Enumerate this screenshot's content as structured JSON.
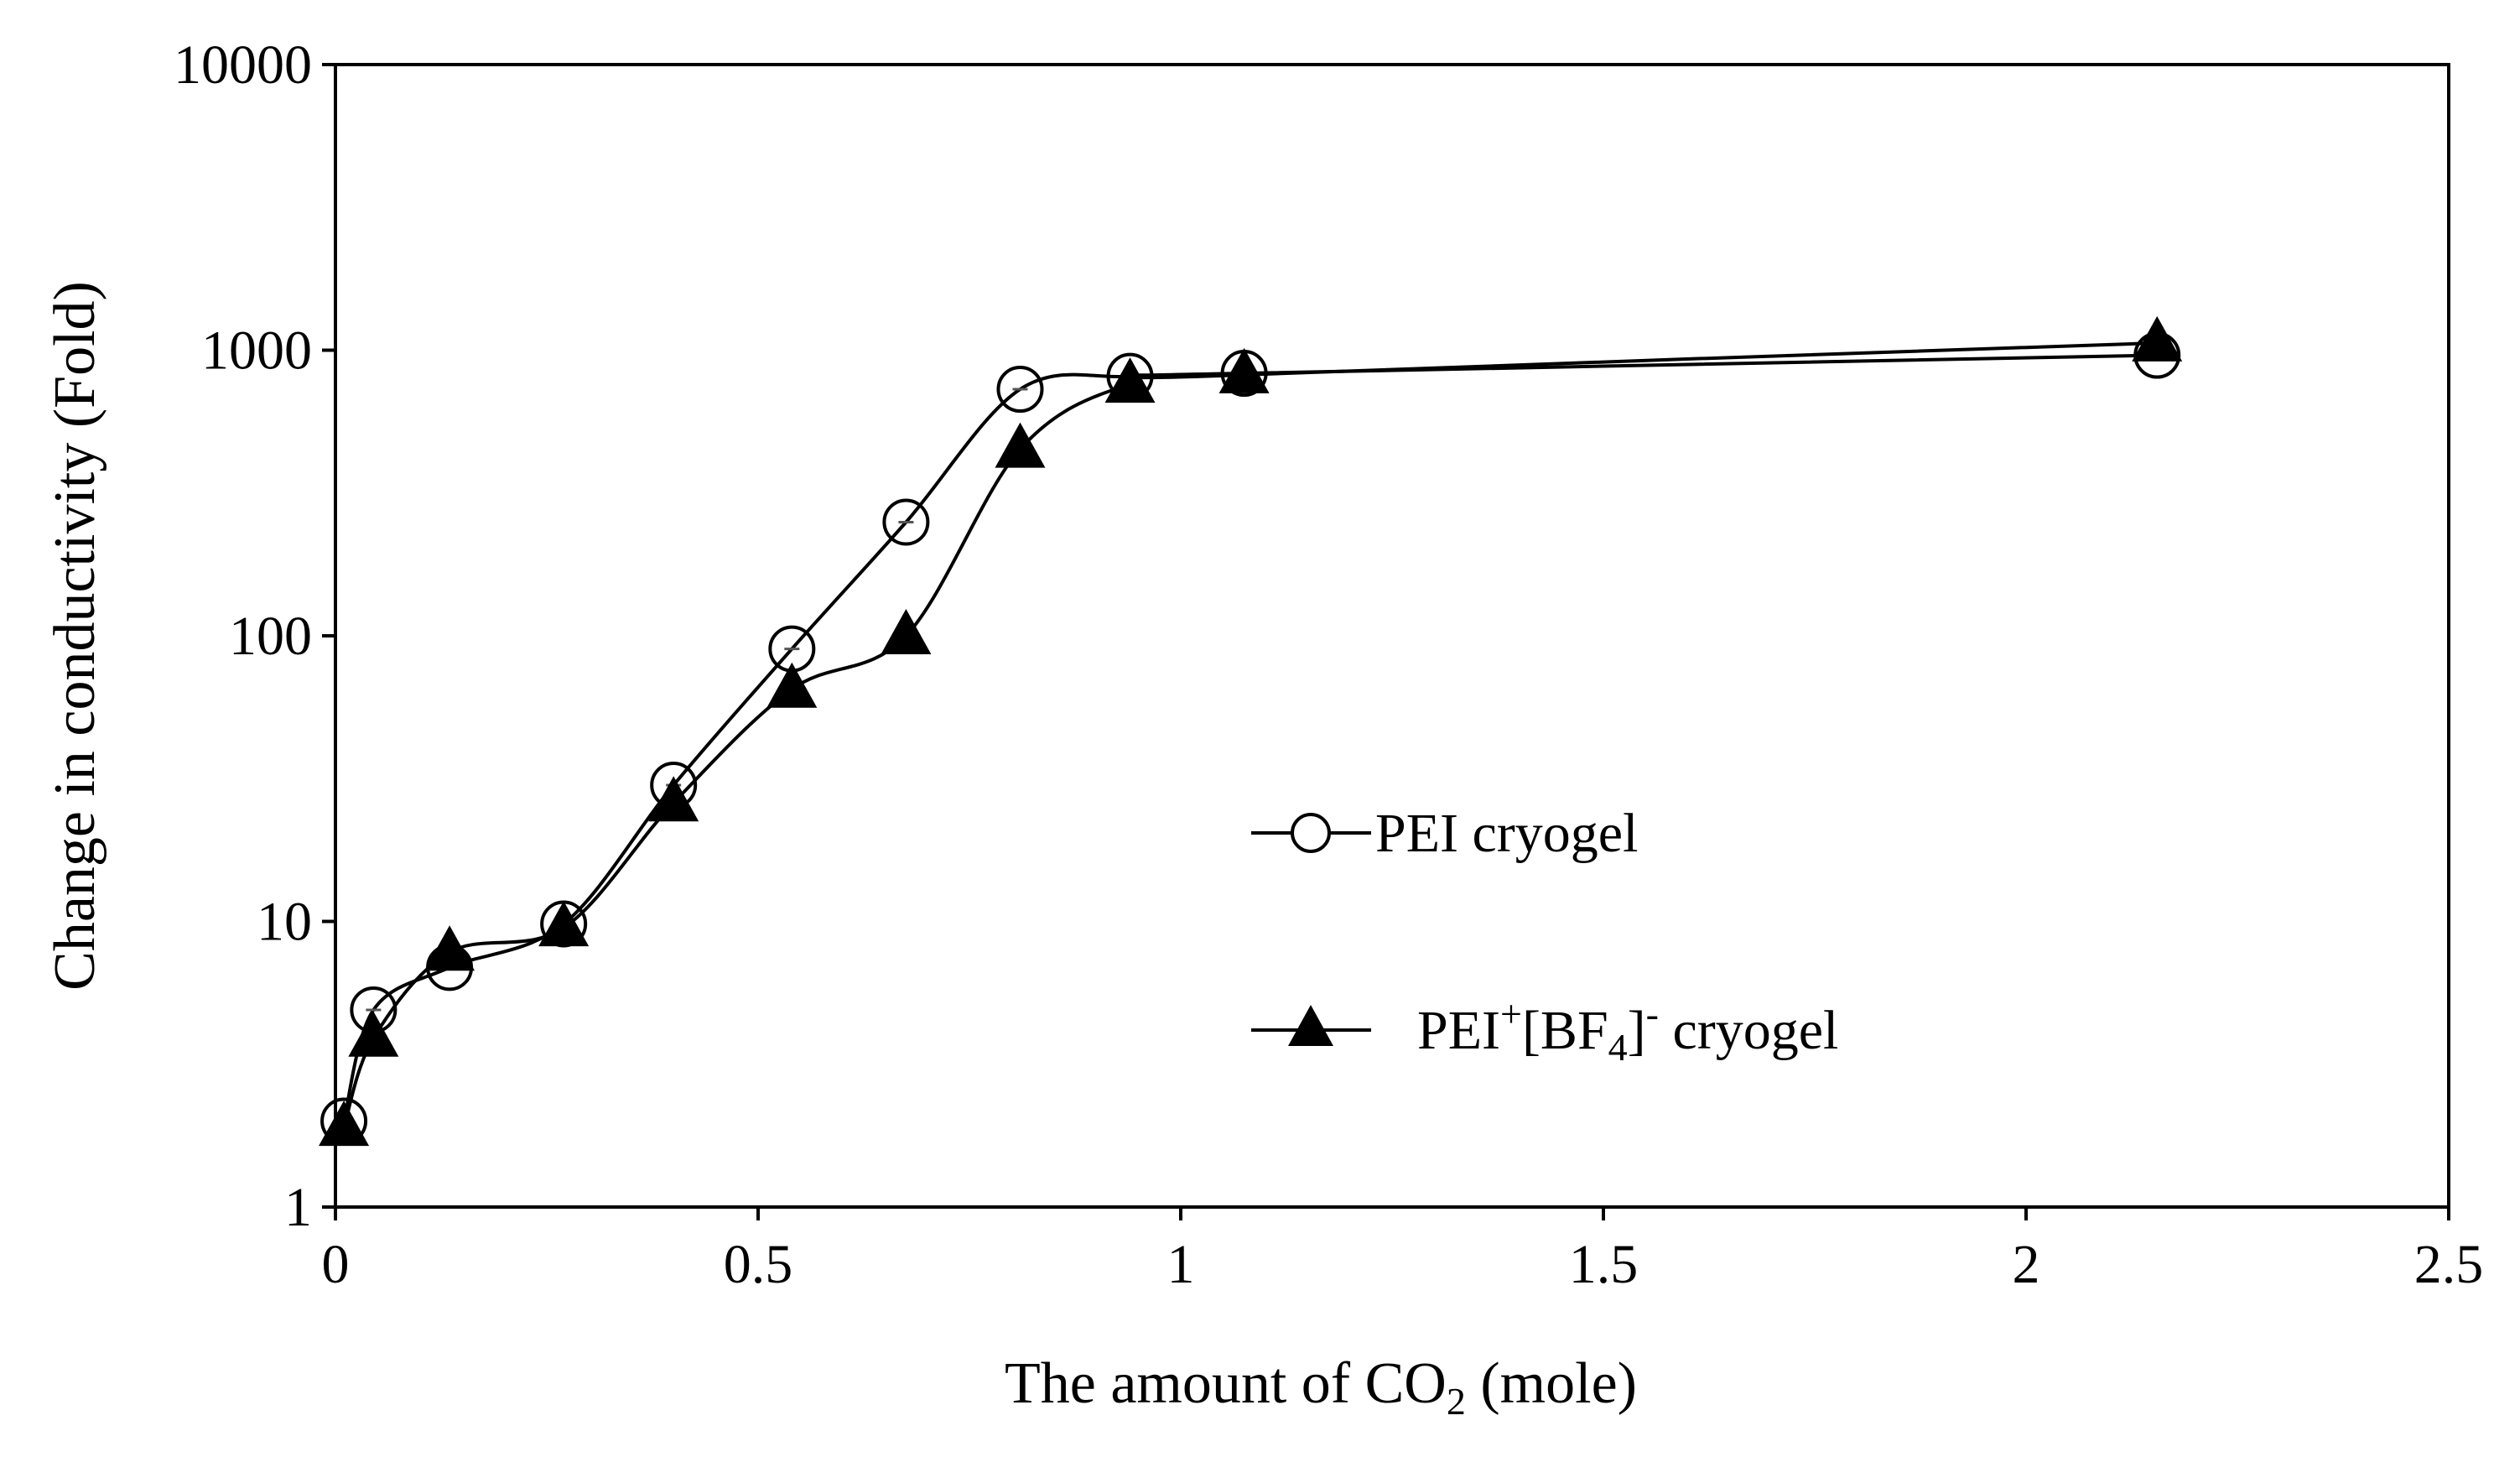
{
  "chart_data": {
    "type": "line",
    "title": "",
    "xlabel": {
      "main": "The amount of CO",
      "sub": "2",
      "tail": " (mole)"
    },
    "ylabel": "Change in conductivity (Fold)",
    "xlim": [
      0,
      2.5
    ],
    "ylim": [
      1,
      10000
    ],
    "yscale": "log",
    "xticks": [
      0,
      0.5,
      1,
      1.5,
      2,
      2.5
    ],
    "xtick_labels": [
      "0",
      "0.5",
      "1",
      "1.5",
      "2",
      "2.5"
    ],
    "yticks": [
      1,
      10,
      100,
      1000,
      10000
    ],
    "ytick_labels": [
      "1",
      "10",
      "100",
      "1000",
      "10000"
    ],
    "grid": false,
    "legend_position": "center-right",
    "series": [
      {
        "name": "PEI cryogel",
        "marker": "open-circle",
        "color": "#000000",
        "x": [
          0.01,
          0.045,
          0.135,
          0.27,
          0.4,
          0.54,
          0.675,
          0.81,
          0.94,
          1.075,
          2.155
        ],
        "y": [
          2,
          4.9,
          6.9,
          9.8,
          30,
          90,
          250,
          730,
          810,
          830,
          960
        ]
      },
      {
        "name": "PEI+[BF4]- cryogel",
        "marker": "filled-triangle",
        "color": "#000000",
        "x": [
          0.01,
          0.045,
          0.135,
          0.27,
          0.4,
          0.54,
          0.675,
          0.81,
          0.94,
          1.075,
          2.155
        ],
        "y": [
          1.9,
          3.9,
          7.8,
          9.5,
          26,
          65,
          100,
          450,
          760,
          820,
          1060
        ]
      }
    ],
    "legend": [
      {
        "marker": "open-circle",
        "text": "PEI cryogel"
      },
      {
        "marker": "filled-triangle",
        "parts": {
          "a": "PEI",
          "sup1": "+",
          "b": "[BF",
          "sub": "4",
          "c": "]",
          "sup2": "-",
          "d": " cryogel"
        }
      }
    ]
  }
}
